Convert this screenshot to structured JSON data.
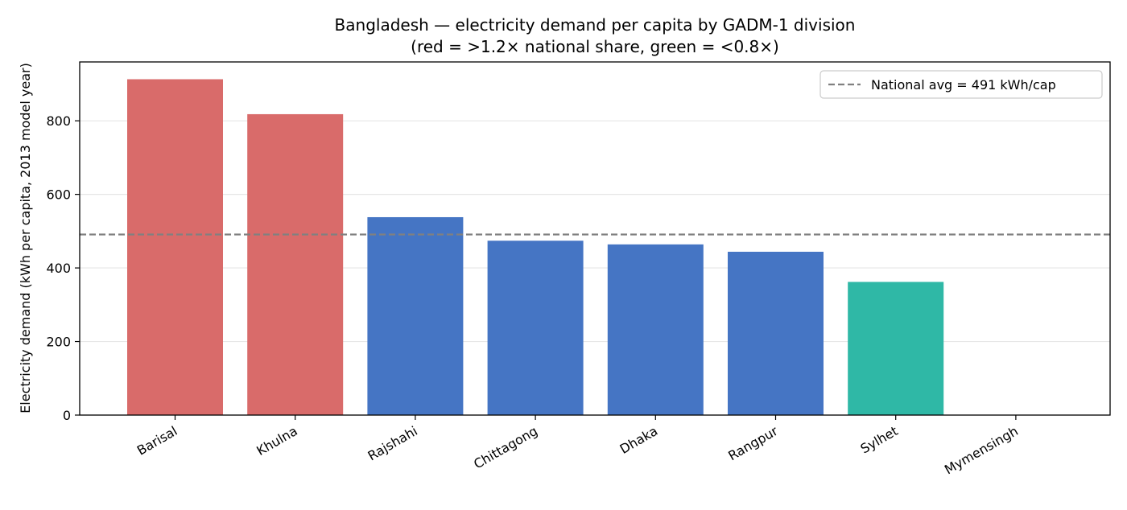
{
  "chart_data": {
    "type": "bar",
    "title": "Bangladesh — electricity demand per capita by GADM-1 division",
    "subtitle": "(red = >1.2× national share, green = <0.8×)",
    "xlabel": "",
    "ylabel": "Electricity demand (kWh per capita, 2013 model year)",
    "categories": [
      "Barisal",
      "Khulna",
      "Rajshahi",
      "Chittagong",
      "Dhaka",
      "Rangpur",
      "Sylhet",
      "Mymensingh"
    ],
    "values": [
      913,
      818,
      538,
      474,
      464,
      444,
      362,
      0
    ],
    "bar_colors": [
      "#d96b6a",
      "#d96b6a",
      "#4575c4",
      "#4575c4",
      "#4575c4",
      "#4575c4",
      "#2fb8a6",
      "#4575c4"
    ],
    "ylim": [
      0,
      960
    ],
    "yticks": [
      0,
      200,
      400,
      600,
      800
    ],
    "reference_line": {
      "value": 491,
      "label": "National avg = 491 kWh/cap",
      "color": "#808080",
      "style": "dashed"
    },
    "grid": "y",
    "legend_position": "top-right"
  }
}
